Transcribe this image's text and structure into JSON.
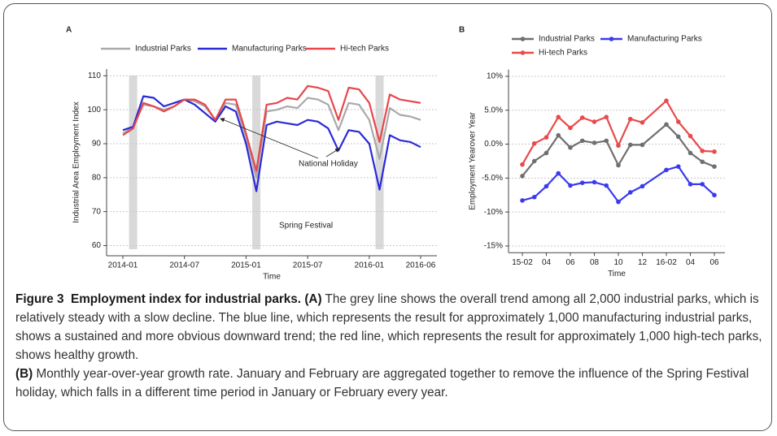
{
  "chart_data": [
    {
      "type": "line",
      "panel_label": "A",
      "x_label": "Time",
      "y_label": "Industrial Area Employment Index",
      "categories": [
        "2014-01",
        null,
        null,
        null,
        null,
        null,
        "2014-07",
        null,
        null,
        null,
        null,
        null,
        "2015-01",
        null,
        null,
        null,
        null,
        null,
        "2015-07",
        null,
        null,
        null,
        null,
        null,
        "2016-01",
        null,
        null,
        null,
        null,
        "2016-06"
      ],
      "series": [
        {
          "name": "Industrial Parks",
          "color": "#a9a9a9",
          "values": [
            93,
            95,
            101.5,
            101,
            100,
            101,
            103,
            102.5,
            101,
            97,
            102,
            101.5,
            92,
            80,
            99.5,
            100,
            101,
            100.5,
            103.5,
            103,
            101.5,
            94,
            102,
            101.5,
            97,
            85.5,
            100.5,
            98.5,
            98,
            97
          ]
        },
        {
          "name": "Manufacturing Parks",
          "color": "#2a2ad8",
          "values": [
            94,
            95,
            104,
            103.5,
            101,
            102,
            103,
            101.5,
            99,
            96.5,
            101,
            99.5,
            90,
            76,
            95.5,
            96.5,
            96,
            95.5,
            97,
            96.5,
            94.5,
            88,
            94,
            93.5,
            90,
            76.5,
            92.5,
            91,
            90.5,
            89
          ]
        },
        {
          "name": "Hi-tech Parks",
          "color": "#e8464a",
          "values": [
            92.5,
            94.5,
            102,
            101,
            99.5,
            101,
            103,
            103,
            101.5,
            97,
            103,
            103,
            93,
            82,
            101.5,
            102,
            103.5,
            103,
            107,
            106.5,
            105.5,
            97,
            106.5,
            106,
            102,
            90.5,
            104.5,
            103,
            102.5,
            102
          ]
        }
      ],
      "ylim": [
        57,
        112
      ],
      "yticks": [
        60,
        70,
        80,
        90,
        100,
        110
      ],
      "grid": true,
      "markers": false,
      "annotations": [
        "National Holiday",
        "Spring Festival"
      ]
    },
    {
      "type": "line",
      "panel_label": "B",
      "x_label": "Time",
      "y_label": "Employment Yearover Year",
      "categories": [
        "15-02",
        null,
        "04",
        null,
        "06",
        null,
        "08",
        null,
        "10",
        null,
        "12",
        "16-02",
        null,
        "04",
        null,
        "06"
      ],
      "series": [
        {
          "name": "Industrial Parks",
          "color": "#6f6f6f",
          "values": [
            -4.7,
            -2.5,
            -1.3,
            1.3,
            -0.5,
            0.5,
            0.2,
            0.5,
            -3.1,
            -0.1,
            -0.1,
            2.9,
            1.1,
            -1.3,
            -2.6,
            -3.3
          ]
        },
        {
          "name": "Manufacturing Parks",
          "color": "#3a3aee",
          "values": [
            -8.3,
            -7.8,
            -6.2,
            -4.3,
            -6.1,
            -5.7,
            -5.6,
            -6.1,
            -8.5,
            -7.1,
            -6.2,
            -3.8,
            -3.3,
            -5.9,
            -5.9,
            -7.5
          ]
        },
        {
          "name": "Hi-tech Parks",
          "color": "#e84a4c",
          "values": [
            -3.0,
            0.1,
            1.0,
            4.0,
            2.4,
            3.9,
            3.3,
            4.0,
            -0.2,
            3.7,
            3.2,
            6.4,
            3.3,
            1.2,
            -1.0,
            -1.1
          ]
        }
      ],
      "ylim": [
        -16,
        11
      ],
      "yticks": [
        {
          "value": -15,
          "label": "-15%"
        },
        {
          "value": -10,
          "label": "-10%"
        },
        {
          "value": -5,
          "label": "-5.0%"
        },
        {
          "value": 0,
          "label": "0.0%"
        },
        {
          "value": 5,
          "label": "5.0%"
        },
        {
          "value": 10,
          "label": "10%"
        }
      ],
      "grid": true,
      "markers": true
    }
  ],
  "caption": {
    "label": "Figure 3",
    "title": "Employment index for industrial parks.",
    "parts": [
      {
        "label": "(A)",
        "text": "The grey line shows the overall trend among all 2,000 industrial parks, which is relatively steady with a slow decline. The blue line, which represents the result for approximately 1,000 manufacturing industrial parks, shows a sustained and more obvious downward trend; the red line, which represents the result for approximately 1,000 high-tech parks, shows healthy growth."
      },
      {
        "label": "(B)",
        "text": "Monthly year-over-year growth rate. January and February are aggregated together to remove the influence of the Spring Festival holiday, which falls in a different time period in January or February every year."
      }
    ]
  }
}
